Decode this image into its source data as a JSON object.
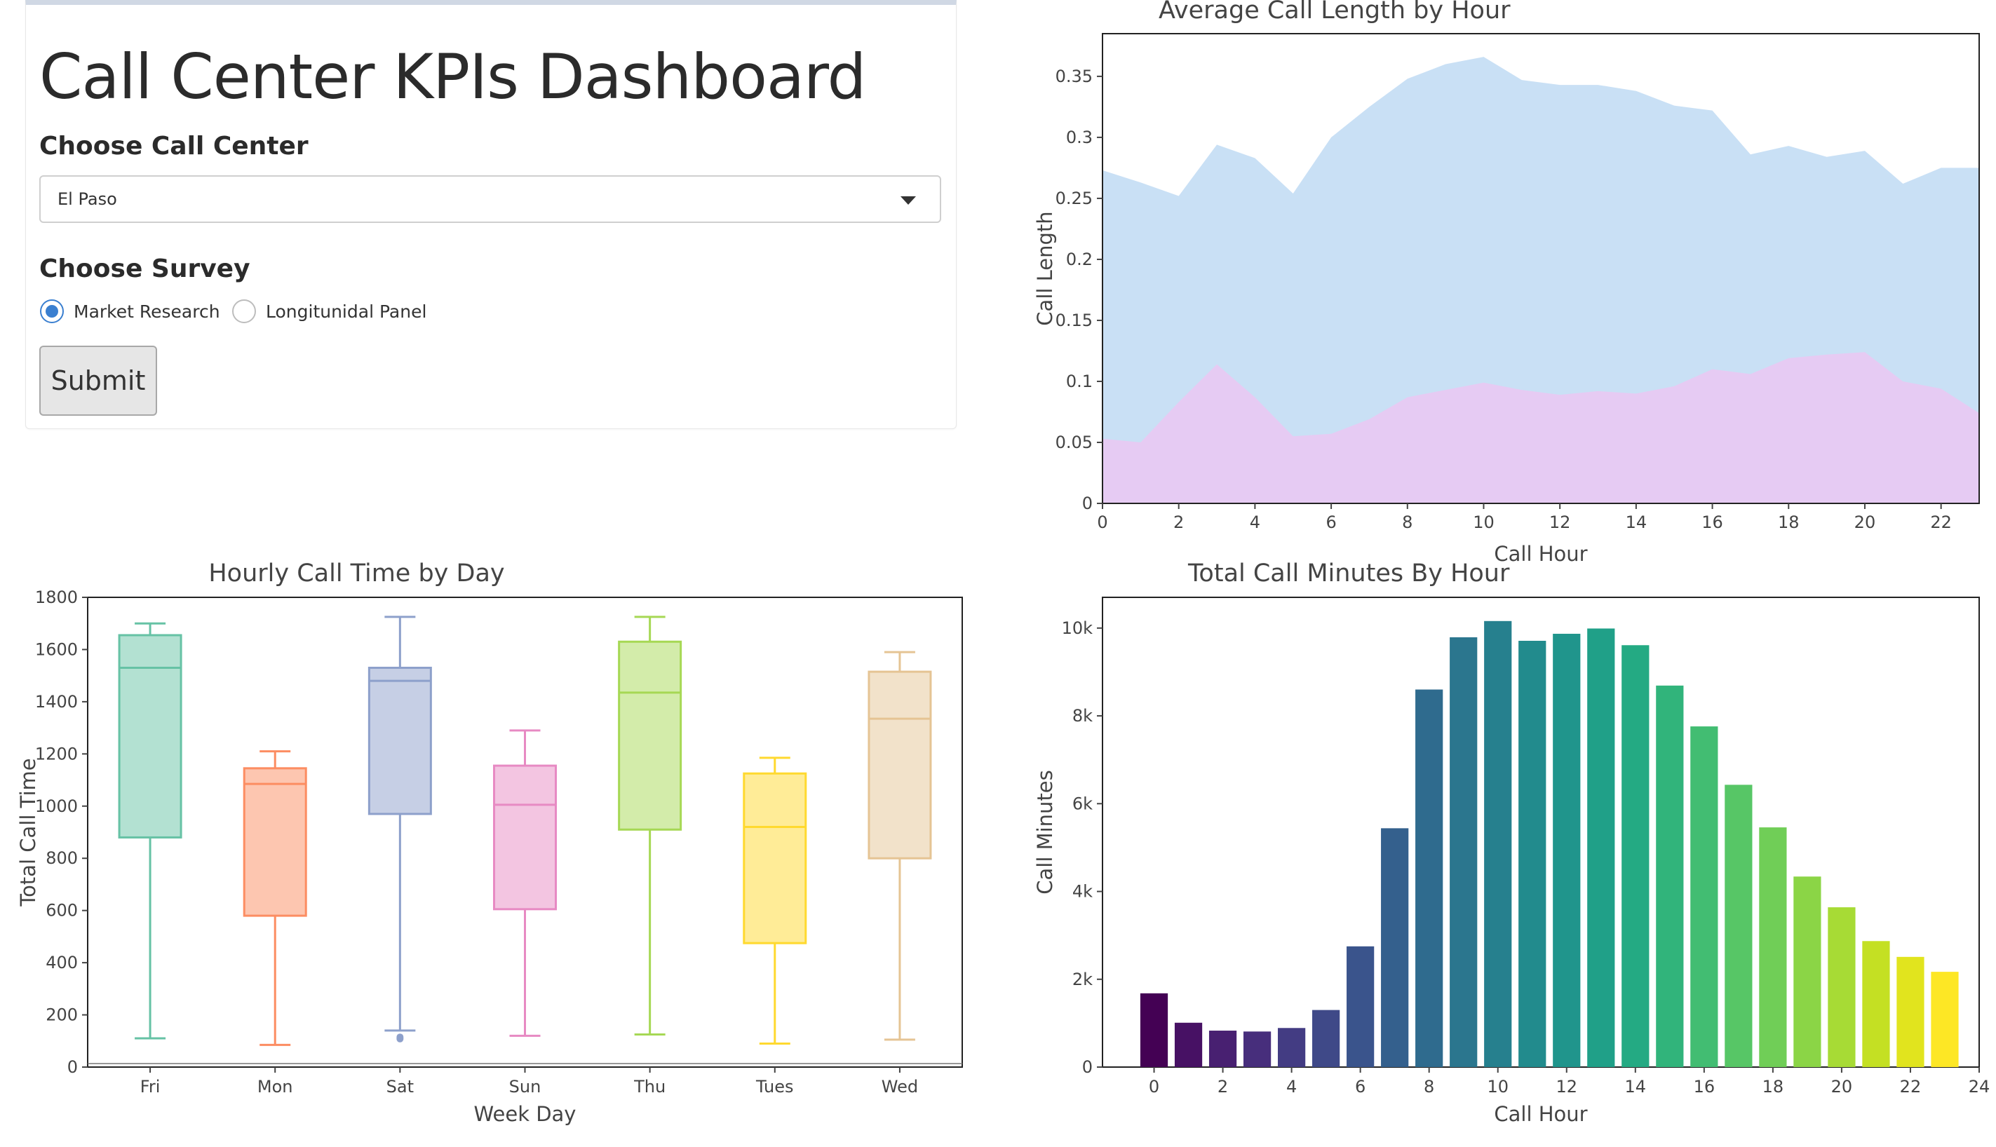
{
  "dashboard": {
    "title": "Call Center KPIs Dashboard",
    "call_center_label": "Choose Call Center",
    "call_center_value": "El Paso",
    "survey_label": "Choose Survey",
    "survey_options": [
      {
        "label": "Market Research",
        "selected": true
      },
      {
        "label": "Longitunidal Panel",
        "selected": false
      }
    ],
    "submit_label": "Submit"
  },
  "chart_data": [
    {
      "type": "area",
      "title": "Average Call Length by Hour",
      "xlabel": "Call Hour",
      "ylabel": "Call Length",
      "x": [
        0,
        1,
        2,
        3,
        4,
        5,
        6,
        7,
        8,
        9,
        10,
        11,
        12,
        13,
        14,
        15,
        16,
        17,
        18,
        19,
        20,
        21,
        22,
        23
      ],
      "series": [
        {
          "values": [
            0.273,
            0.263,
            0.252,
            0.294,
            0.283,
            0.254,
            0.3,
            0.325,
            0.348,
            0.36,
            0.366,
            0.347,
            0.343,
            0.343,
            0.338,
            0.326,
            0.322,
            0.286,
            0.293,
            0.284,
            0.289,
            0.262,
            0.275,
            0.275
          ],
          "color": "#c9e0f5"
        },
        {
          "values": [
            0.053,
            0.05,
            0.083,
            0.114,
            0.087,
            0.055,
            0.057,
            0.069,
            0.087,
            0.093,
            0.099,
            0.093,
            0.089,
            0.092,
            0.09,
            0.096,
            0.11,
            0.106,
            0.119,
            0.122,
            0.124,
            0.1,
            0.094,
            0.074
          ],
          "color": "#e6cbf3"
        }
      ],
      "xlim": [
        0,
        23
      ],
      "ylim": [
        0,
        0.385
      ],
      "xticks": [
        0,
        2,
        4,
        6,
        8,
        10,
        12,
        14,
        16,
        18,
        20,
        22
      ],
      "yticks": [
        0,
        0.05,
        0.1,
        0.15,
        0.2,
        0.25,
        0.3,
        0.35
      ],
      "ytick_labels": [
        "0",
        "0.05",
        "0.1",
        "0.15",
        "0.2",
        "0.25",
        "0.3",
        "0.35"
      ]
    },
    {
      "type": "box",
      "title": "Hourly Call Time by Day",
      "xlabel": "Week Day",
      "ylabel": "Total Call Time",
      "ylim": [
        0,
        1800
      ],
      "yticks": [
        0,
        200,
        400,
        600,
        800,
        1000,
        1200,
        1400,
        1600,
        1800
      ],
      "boxes": [
        {
          "category": "Fri",
          "min": 110,
          "q1": 880,
          "median": 1530,
          "q3": 1655,
          "max": 1700,
          "color": "#66c2a5",
          "fill": "#b3e1d2",
          "outliers": []
        },
        {
          "category": "Mon",
          "min": 85,
          "q1": 580,
          "median": 1085,
          "q3": 1145,
          "max": 1210,
          "color": "#fc8d62",
          "fill": "#fdc6b0",
          "outliers": []
        },
        {
          "category": "Sat",
          "min": 140,
          "q1": 970,
          "median": 1480,
          "q3": 1530,
          "max": 1725,
          "color": "#8da0cb",
          "fill": "#c6cfe5",
          "outliers": [
            115,
            108
          ]
        },
        {
          "category": "Sun",
          "min": 120,
          "q1": 605,
          "median": 1005,
          "q3": 1155,
          "max": 1290,
          "color": "#e78ac3",
          "fill": "#f3c5e1",
          "outliers": []
        },
        {
          "category": "Thu",
          "min": 125,
          "q1": 910,
          "median": 1435,
          "q3": 1630,
          "max": 1725,
          "color": "#a6d854",
          "fill": "#d3ecaa",
          "outliers": []
        },
        {
          "category": "Tues",
          "min": 90,
          "q1": 475,
          "median": 920,
          "q3": 1125,
          "max": 1185,
          "color": "#ffd92f",
          "fill": "#ffec97",
          "outliers": []
        },
        {
          "category": "Wed",
          "min": 105,
          "q1": 800,
          "median": 1335,
          "q3": 1515,
          "max": 1590,
          "color": "#e5c494",
          "fill": "#f2e2ca",
          "outliers": []
        }
      ]
    },
    {
      "type": "bar",
      "title": "Total Call Minutes By Hour",
      "xlabel": "Call Hour",
      "ylabel": "Call Minutes",
      "x": [
        0,
        1,
        2,
        3,
        4,
        5,
        6,
        7,
        8,
        9,
        10,
        11,
        12,
        13,
        14,
        15,
        16,
        17,
        18,
        19,
        20,
        21,
        22,
        23
      ],
      "values": [
        1680,
        1010,
        830,
        810,
        890,
        1300,
        2750,
        5440,
        8600,
        9790,
        10160,
        9710,
        9870,
        9990,
        9610,
        8690,
        7760,
        6430,
        5460,
        4340,
        3640,
        2870,
        2510,
        2170
      ],
      "colors": [
        "#440154",
        "#481a6c",
        "#472f7d",
        "#414487",
        "#39568c",
        "#31688e",
        "#2a788e",
        "#23888e",
        "#1f988b",
        "#22a884",
        "#35b779",
        "#54c568",
        "#7ad151",
        "#a5db36",
        "#d2e21b",
        "#fde725"
      ],
      "xlim": [
        -1.5,
        24
      ],
      "ylim": [
        0,
        10700
      ],
      "xticks": [
        0,
        2,
        4,
        6,
        8,
        10,
        12,
        14,
        16,
        18,
        20,
        22,
        24
      ],
      "yticks": [
        0,
        2000,
        4000,
        6000,
        8000,
        10000
      ],
      "ytick_labels": [
        "0",
        "2k",
        "4k",
        "6k",
        "8k",
        "10k"
      ]
    }
  ]
}
